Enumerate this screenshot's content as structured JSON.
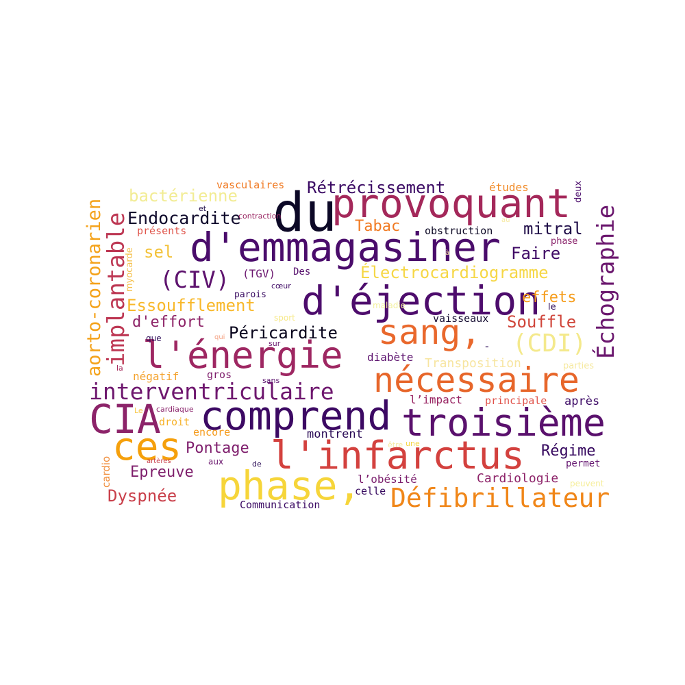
{
  "words": [
    {
      "text": "du",
      "color": "#0c0826"
    },
    {
      "text": "provoquant",
      "color": "#a4285a"
    },
    {
      "text": "d'emmagasiner",
      "color": "#4a0c6b"
    },
    {
      "text": "d'éjection",
      "color": "#4d0c6c"
    },
    {
      "text": "sang,",
      "color": "#e9682c"
    },
    {
      "text": "l'énergie",
      "color": "#9e2762"
    },
    {
      "text": "nécessaire",
      "color": "#e7662a"
    },
    {
      "text": "CIA",
      "color": "#8c2369"
    },
    {
      "text": "comprend",
      "color": "#3c0963"
    },
    {
      "text": "troisième",
      "color": "#5a116d"
    },
    {
      "text": "ces",
      "color": "#f5a00c"
    },
    {
      "text": "l'infarctus",
      "color": "#d3413e"
    },
    {
      "text": "phase,",
      "color": "#f6d53a"
    },
    {
      "text": "Défibrillateur",
      "color": "#f08618"
    },
    {
      "text": "Échographie",
      "color": "#6b176e"
    },
    {
      "text": "aorto-coronarien",
      "color": "#f4a21a"
    },
    {
      "text": "implantable",
      "color": "#bd3753"
    },
    {
      "text": "interventriculaire",
      "color": "#6e176e"
    },
    {
      "text": "(CIV)",
      "color": "#5e136e"
    },
    {
      "text": "(CDI)",
      "color": "#f4e98c"
    },
    {
      "text": "Essoufflement",
      "color": "#f8b82a"
    },
    {
      "text": "Électrocardiogramme",
      "color": "#f6d746"
    },
    {
      "text": "Rétrécissement",
      "color": "#3a0963"
    },
    {
      "text": "Endocardite",
      "color": "#0f0a2c"
    },
    {
      "text": "bactérienne",
      "color": "#f2ec94"
    },
    {
      "text": "Faire",
      "color": "#3f0a65"
    },
    {
      "text": "mitral",
      "color": "#1f0c48"
    },
    {
      "text": "Tabac",
      "color": "#f17a22"
    },
    {
      "text": "Péricardite",
      "color": "#08051c"
    },
    {
      "text": "Souffle",
      "color": "#d0453a"
    },
    {
      "text": "effets",
      "color": "#f59c1a"
    },
    {
      "text": "d'effort",
      "color": "#8e2468"
    },
    {
      "text": "sel",
      "color": "#f3c23a"
    },
    {
      "text": "Pontage",
      "color": "#7e1d6c"
    },
    {
      "text": "Epreuve",
      "color": "#7e1e6b"
    },
    {
      "text": "Dyspnée",
      "color": "#c93f4a"
    },
    {
      "text": "Régime",
      "color": "#36095f"
    },
    {
      "text": "Cardiologie",
      "color": "#8d2369"
    },
    {
      "text": "Communication",
      "color": "#3a0963"
    },
    {
      "text": "montrent",
      "color": "#2a0b56"
    },
    {
      "text": "vasculaires",
      "color": "#f07a23"
    },
    {
      "text": "études",
      "color": "#f18a26"
    },
    {
      "text": "obstruction",
      "color": "#0a0622"
    },
    {
      "text": "présents",
      "color": "#e0574d"
    },
    {
      "text": "(TGV)",
      "color": "#6b176f"
    },
    {
      "text": "Des",
      "color": "#56106d"
    },
    {
      "text": "parois",
      "color": "#37095f"
    },
    {
      "text": "vaisseaux",
      "color": "#12092e"
    },
    {
      "text": "Transposition",
      "color": "#f7e5a0"
    },
    {
      "text": "diabète",
      "color": "#5c126e"
    },
    {
      "text": "négatif",
      "color": "#f4a22c"
    },
    {
      "text": "gros",
      "color": "#7e1e6c"
    },
    {
      "text": "l’impact",
      "color": "#9a2865"
    },
    {
      "text": "principale",
      "color": "#e0534b"
    },
    {
      "text": "après",
      "color": "#3c0965"
    },
    {
      "text": "encore",
      "color": "#f59a1a"
    },
    {
      "text": "droit",
      "color": "#f6b22a"
    },
    {
      "text": "l’obésité",
      "color": "#7a1d6c"
    },
    {
      "text": "celle",
      "color": "#36095f"
    },
    {
      "text": "permet",
      "color": "#62136e"
    },
    {
      "text": "sport",
      "color": "#f7e98a"
    },
    {
      "text": "maladie",
      "color": "#f3f09e"
    },
    {
      "text": "phase",
      "color": "#8a236b"
    },
    {
      "text": "le",
      "color": "#2c0b57"
    },
    {
      "text": "parties",
      "color": "#f6e9a0"
    },
    {
      "text": "peuvent",
      "color": "#f6ee9a"
    },
    {
      "text": "cœur",
      "color": "#3f0a65"
    },
    {
      "text": "contraction",
      "color": "#9a2763"
    },
    {
      "text": "myocarde",
      "color": "#f4c04a"
    },
    {
      "text": "cardio",
      "color": "#f09040"
    },
    {
      "text": "deux",
      "color": "#4a0c6b"
    },
    {
      "text": "et",
      "color": "#1f0c48"
    },
    {
      "text": "que",
      "color": "#2c0b57"
    },
    {
      "text": "qui",
      "color": "#f4a080"
    },
    {
      "text": "sur",
      "color": "#6b176e"
    },
    {
      "text": "la",
      "color": "#a4285a"
    },
    {
      "text": "sans",
      "color": "#5a116d"
    },
    {
      "text": "Le",
      "color": "#f7c94a"
    },
    {
      "text": "cardiaque",
      "color": "#8a236b"
    },
    {
      "text": "aux",
      "color": "#6b176e"
    },
    {
      "text": "de",
      "color": "#2a0b56"
    },
    {
      "text": "artères",
      "color": "#c83f4a"
    },
    {
      "text": "être",
      "color": "#f6e9a0"
    },
    {
      "text": "une",
      "color": "#f6d746"
    },
    {
      "text": "à",
      "color": "#f6e9a0"
    },
    {
      "text": "au",
      "color": "#f6e9a0"
    },
    {
      "text": "-",
      "color": "#2a0b56"
    }
  ]
}
